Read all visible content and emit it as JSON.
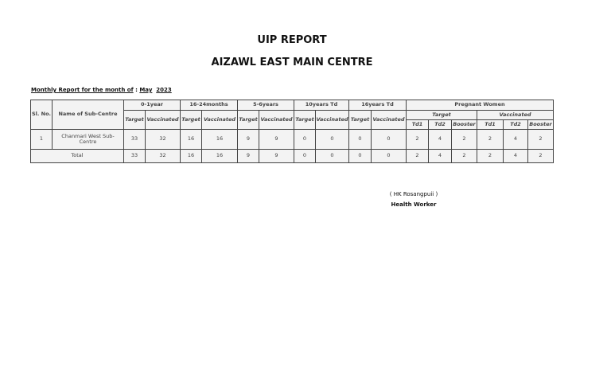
{
  "title": "UIP REPORT",
  "centre": "AIZAWL EAST MAIN CENTRE",
  "month_label": "Monthly Report for the month of",
  "month": "May",
  "year": "2023",
  "headers": {
    "sl": "Sl. No.",
    "name": "Name of Sub-Centre",
    "groups": [
      "0-1year",
      "16-24months",
      "5-6years",
      "10years Td",
      "16years Td"
    ],
    "pregnant": "Pregnant Women",
    "target": "Target",
    "vaccinated": "Vaccinated",
    "td1": "Td1",
    "td2": "Td2",
    "booster": "Booster"
  },
  "rows": [
    {
      "sl": "1",
      "name": "Chanmari West Sub-Centre",
      "values": [
        "33",
        "32",
        "16",
        "16",
        "9",
        "9",
        "0",
        "0",
        "0",
        "0",
        "2",
        "4",
        "2",
        "2",
        "4",
        "2"
      ]
    }
  ],
  "total": {
    "label": "Total",
    "values": [
      "33",
      "32",
      "16",
      "16",
      "9",
      "9",
      "0",
      "0",
      "0",
      "0",
      "2",
      "4",
      "2",
      "2",
      "4",
      "2"
    ]
  },
  "signature": {
    "name": "( HK Rosangpuii )",
    "role": "Health Worker"
  }
}
